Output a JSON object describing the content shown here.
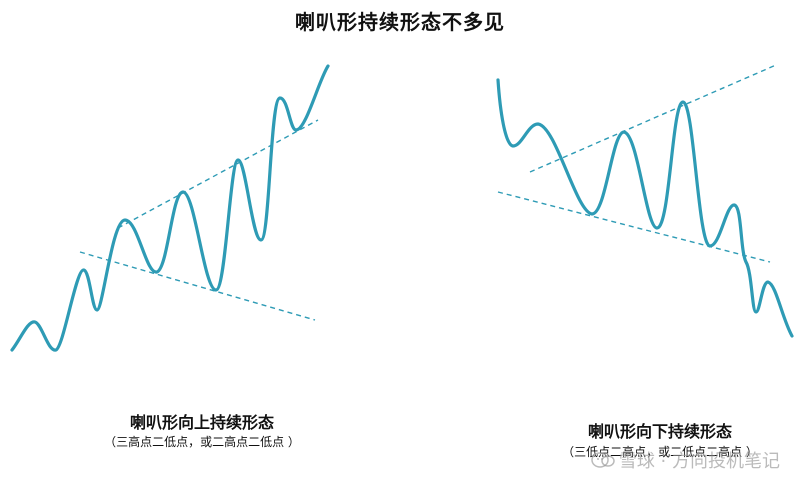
{
  "title": "喇叭形持续形态不多见",
  "panels": [
    {
      "caption": "喇叭形向上持续形态",
      "subcaption": "（三高点二低点，或二高点二低点 ）"
    },
    {
      "caption": "喇叭形向下持续形态",
      "subcaption": "（三低点二高点，或二低点二高点 ）"
    }
  ],
  "watermark": {
    "logo": "snowball-logo",
    "text": "雪球 · 方向投机笔记"
  },
  "colors": {
    "price_line": "#2e9bb5",
    "trend_line": "#2e9bb5"
  }
}
